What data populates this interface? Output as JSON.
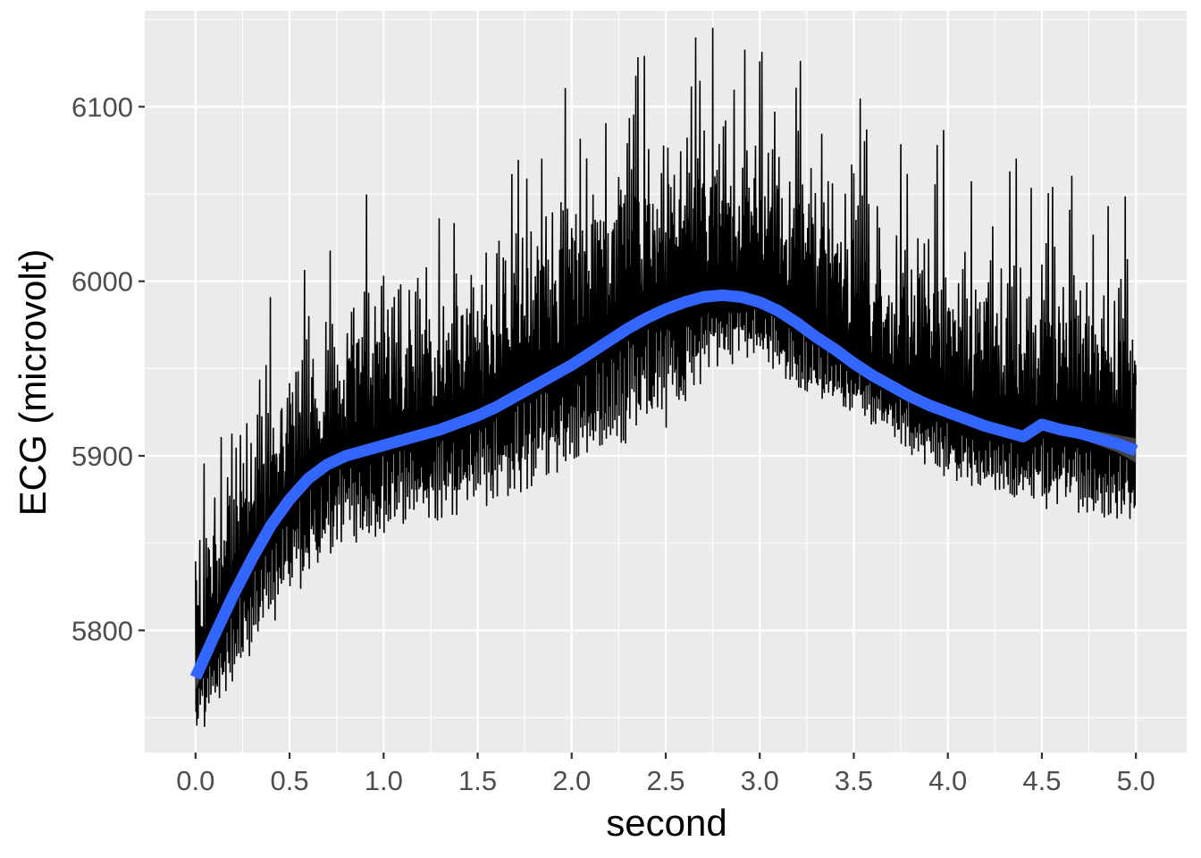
{
  "chart_data": {
    "type": "line",
    "title": "",
    "xlabel": "second",
    "ylabel": "ECG (microvolt)",
    "xlim": [
      -0.27,
      5.27
    ],
    "ylim": [
      5730,
      6155
    ],
    "x_ticks": [
      "0.0",
      "0.5",
      "1.0",
      "1.5",
      "2.0",
      "2.5",
      "3.0",
      "3.5",
      "4.0",
      "4.5",
      "5.0"
    ],
    "y_ticks": [
      "5800",
      "5900",
      "6000",
      "6100"
    ],
    "grid": true,
    "panel_background": "#ebebeb",
    "series": [
      {
        "kind": "raw_signal",
        "color": "#000000",
        "x": [
          0.0,
          0.25,
          0.5,
          0.75,
          1.0,
          1.25,
          1.5,
          1.75,
          2.0,
          2.25,
          2.5,
          2.75,
          3.0,
          3.25,
          3.5,
          3.75,
          4.0,
          4.25,
          4.5,
          4.75,
          5.0
        ],
        "y_min": [
          5735,
          5780,
          5815,
          5845,
          5855,
          5862,
          5868,
          5880,
          5895,
          5905,
          5915,
          5950,
          5955,
          5935,
          5925,
          5905,
          5885,
          5880,
          5870,
          5865,
          5862
        ],
        "y_max": [
          5905,
          5975,
          6010,
          6040,
          6065,
          6060,
          6075,
          6095,
          6115,
          6135,
          6150,
          6152,
          6145,
          6130,
          6120,
          6100,
          6090,
          6075,
          6065,
          6060,
          6060
        ]
      },
      {
        "kind": "smooth",
        "color": "#3366ff",
        "ribbon_color": "#4d4d4d",
        "x": [
          0.0,
          0.1,
          0.2,
          0.3,
          0.4,
          0.5,
          0.6,
          0.7,
          0.8,
          0.9,
          1.0,
          1.1,
          1.2,
          1.3,
          1.4,
          1.5,
          1.6,
          1.7,
          1.8,
          1.9,
          2.0,
          2.1,
          2.2,
          2.3,
          2.4,
          2.5,
          2.6,
          2.7,
          2.8,
          2.9,
          3.0,
          3.1,
          3.2,
          3.3,
          3.4,
          3.5,
          3.6,
          3.7,
          3.8,
          3.9,
          4.0,
          4.1,
          4.2,
          4.3,
          4.4,
          4.5,
          4.6,
          4.7,
          4.8,
          4.9,
          5.0
        ],
        "y": [
          5773,
          5797,
          5820,
          5841,
          5860,
          5875,
          5887,
          5895,
          5900,
          5903,
          5906,
          5909,
          5912,
          5915,
          5919,
          5923,
          5928,
          5934,
          5940,
          5946,
          5952,
          5959,
          5966,
          5973,
          5979,
          5984,
          5988,
          5991,
          5992,
          5991,
          5988,
          5983,
          5976,
          5968,
          5961,
          5953,
          5946,
          5940,
          5934,
          5929,
          5925,
          5921,
          5917,
          5914,
          5911,
          5918,
          5915,
          5913,
          5910,
          5907,
          5903
        ],
        "se": [
          7,
          5,
          4,
          3,
          3,
          3,
          3,
          3,
          3,
          3,
          3,
          3,
          3,
          3,
          3,
          3,
          3,
          3,
          3,
          3,
          3,
          3,
          3,
          3,
          3,
          3,
          3,
          3,
          3,
          3,
          3,
          3,
          3,
          3,
          3,
          3,
          3,
          3,
          3,
          3,
          3,
          3,
          3,
          3,
          3,
          3,
          3,
          3,
          4,
          5,
          7
        ]
      }
    ]
  }
}
